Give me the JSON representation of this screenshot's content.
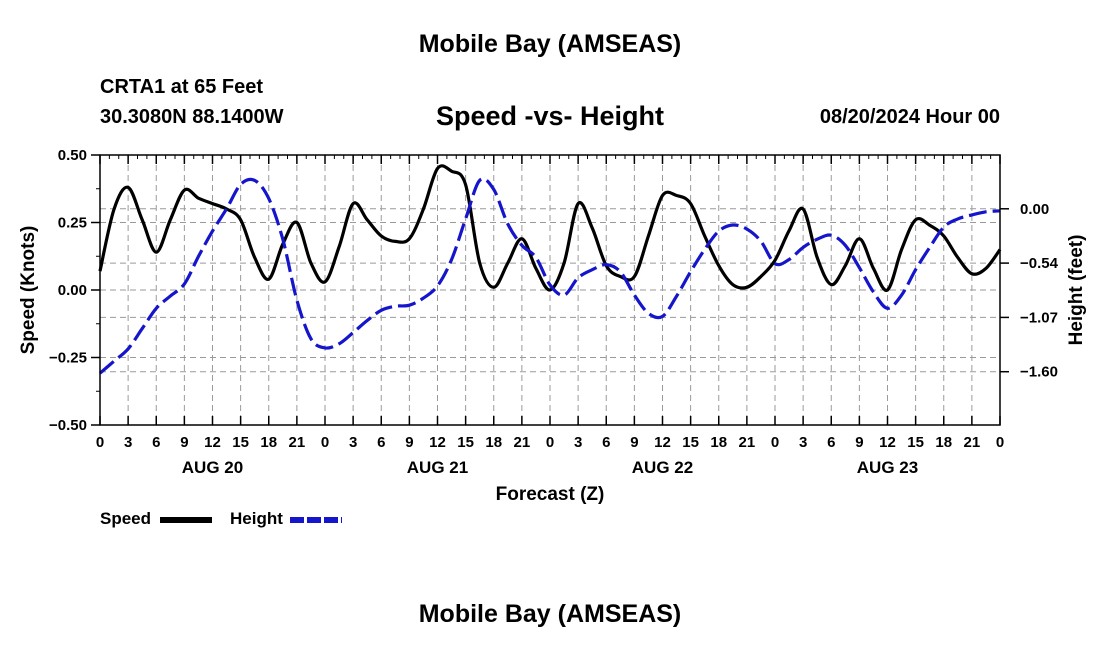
{
  "header": {
    "title": "Mobile Bay (AMSEAS)",
    "station": "CRTA1 at 65 Feet",
    "coords": "30.3080N  88.1400W",
    "subtitle": "Speed -vs- Height",
    "run_time": "08/20/2024 Hour 00",
    "footer_title": "Mobile Bay (AMSEAS)"
  },
  "legend": {
    "speed_label": "Speed",
    "height_label": "Height"
  },
  "colors": {
    "speed": "#000000",
    "height": "#1515cc",
    "grid": "#9a9a9a"
  },
  "chart_data": {
    "type": "line",
    "xlabel": "Forecast (Z)",
    "ylabel": "Speed (Knots)",
    "ylabel_right": "Height (feet)",
    "ylim": [
      -0.5,
      0.5
    ],
    "ylim_right": [
      -2.13,
      0.53
    ],
    "x_range_hours": [
      0,
      96
    ],
    "x_tick_labels": [
      "0",
      "3",
      "6",
      "9",
      "12",
      "15",
      "18",
      "21",
      "0",
      "3",
      "6",
      "9",
      "12",
      "15",
      "18",
      "21",
      "0",
      "3",
      "6",
      "9",
      "12",
      "15",
      "18",
      "21",
      "0",
      "3",
      "6",
      "9",
      "12",
      "15",
      "18",
      "21",
      "0"
    ],
    "day_labels": [
      "AUG 20",
      "AUG 21",
      "AUG 22",
      "AUG 23"
    ],
    "y_ticks": [
      "0.50",
      "0.25",
      "0.00",
      "−0.25",
      "−0.50"
    ],
    "y_ticks_right": [
      "0.00",
      "−0.54",
      "−1.07",
      "−1.60"
    ],
    "grid": true,
    "legend_position": "bottom-left",
    "series": [
      {
        "name": "Speed",
        "style": "solid",
        "axis": "left",
        "x": [
          0,
          1.5,
          3,
          4.5,
          6,
          7.5,
          9,
          10.5,
          12,
          13.5,
          15,
          16.5,
          18,
          19.5,
          21,
          22.5,
          24,
          25.5,
          27,
          28.5,
          30,
          31.5,
          33,
          34.5,
          36,
          37.5,
          39,
          40.5,
          42,
          43.5,
          45,
          46.5,
          48,
          49.5,
          51,
          52.5,
          54,
          55.5,
          57,
          58.5,
          60,
          61.5,
          63,
          64.5,
          66,
          67.5,
          69,
          70.5,
          72,
          73.5,
          75,
          76.5,
          78,
          79.5,
          81,
          82.5,
          84,
          85.5,
          87,
          88.5,
          90,
          91.5,
          93,
          94.5,
          96
        ],
        "y": [
          0.07,
          0.3,
          0.38,
          0.26,
          0.14,
          0.26,
          0.37,
          0.34,
          0.32,
          0.3,
          0.26,
          0.12,
          0.04,
          0.17,
          0.25,
          0.1,
          0.03,
          0.16,
          0.32,
          0.26,
          0.2,
          0.18,
          0.19,
          0.3,
          0.45,
          0.44,
          0.39,
          0.1,
          0.01,
          0.1,
          0.19,
          0.08,
          0.0,
          0.1,
          0.32,
          0.23,
          0.09,
          0.05,
          0.05,
          0.2,
          0.35,
          0.35,
          0.32,
          0.2,
          0.09,
          0.02,
          0.01,
          0.05,
          0.11,
          0.22,
          0.3,
          0.12,
          0.02,
          0.09,
          0.19,
          0.08,
          0.0,
          0.15,
          0.26,
          0.24,
          0.2,
          0.12,
          0.06,
          0.08,
          0.15
        ]
      },
      {
        "name": "Height",
        "style": "dashed",
        "axis": "right",
        "x": [
          0,
          1.5,
          3,
          4.5,
          6,
          7.5,
          9,
          10.5,
          12,
          13.5,
          15,
          16.5,
          18,
          19.5,
          21,
          22.5,
          24,
          25.5,
          27,
          28.5,
          30,
          31.5,
          33,
          34.5,
          36,
          37.5,
          39,
          40.5,
          42,
          43.5,
          45,
          46.5,
          48,
          49.5,
          51,
          52.5,
          54,
          55.5,
          57,
          58.5,
          60,
          61.5,
          63,
          64.5,
          66,
          67.5,
          69,
          70.5,
          72,
          73.5,
          75,
          76.5,
          78,
          79.5,
          81,
          82.5,
          84,
          85.5,
          87,
          88.5,
          90,
          91.5,
          93,
          94.5,
          96
        ],
        "y": [
          -1.62,
          -1.5,
          -1.38,
          -1.18,
          -0.98,
          -0.86,
          -0.74,
          -0.47,
          -0.22,
          0.0,
          0.24,
          0.28,
          0.1,
          -0.3,
          -0.9,
          -1.28,
          -1.37,
          -1.33,
          -1.22,
          -1.1,
          -1.0,
          -0.96,
          -0.95,
          -0.88,
          -0.76,
          -0.5,
          -0.1,
          0.28,
          0.19,
          -0.15,
          -0.36,
          -0.48,
          -0.75,
          -0.85,
          -0.68,
          -0.6,
          -0.55,
          -0.62,
          -0.85,
          -1.03,
          -1.06,
          -0.86,
          -0.62,
          -0.4,
          -0.22,
          -0.16,
          -0.2,
          -0.32,
          -0.54,
          -0.5,
          -0.38,
          -0.3,
          -0.26,
          -0.36,
          -0.58,
          -0.82,
          -0.98,
          -0.85,
          -0.6,
          -0.38,
          -0.18,
          -0.1,
          -0.06,
          -0.03,
          -0.02
        ]
      }
    ]
  }
}
